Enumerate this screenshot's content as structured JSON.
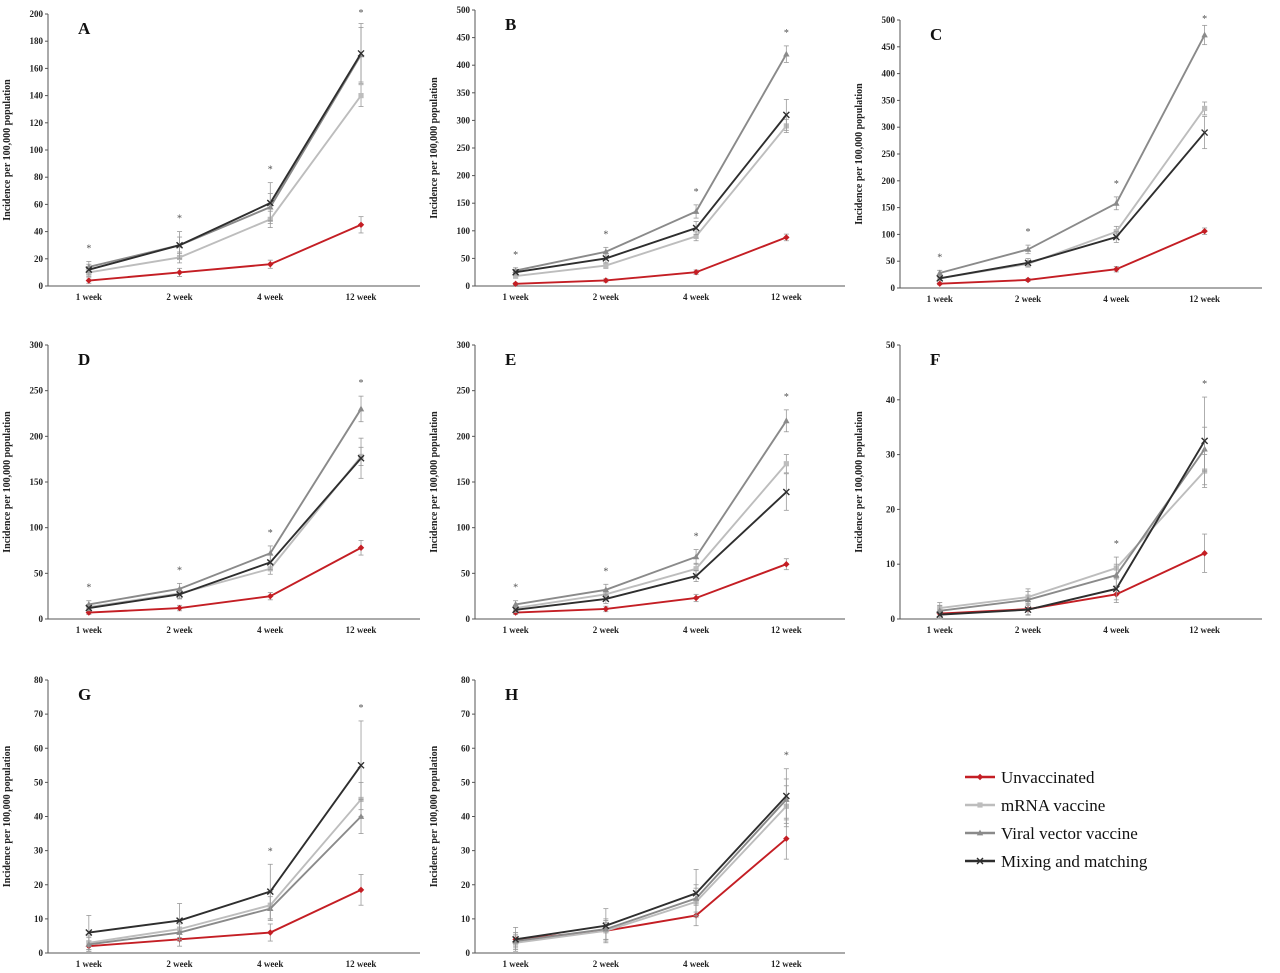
{
  "legend": [
    {
      "name": "Unvaccinated",
      "color": "#c41e24",
      "marker": "diamond"
    },
    {
      "name": "mRNA vaccine",
      "color": "#bdbdbd",
      "marker": "square"
    },
    {
      "name": "Viral vector vaccine",
      "color": "#8a8a8a",
      "marker": "triangle"
    },
    {
      "name": "Mixing and matching",
      "color": "#2e2e2e",
      "marker": "x"
    }
  ],
  "chart_data": [
    {
      "type": "line",
      "panel": "A",
      "ylabel": "Incidence per 100,000 population",
      "ylim": [
        0,
        200
      ],
      "yticks": [
        0,
        20,
        40,
        60,
        80,
        100,
        120,
        140,
        160,
        180,
        200
      ],
      "categories": [
        "1 week",
        "2 week",
        "4 week",
        "12 week"
      ],
      "series": [
        {
          "name": "Unvaccinated",
          "values": [
            4,
            10,
            16,
            45
          ],
          "err": [
            2,
            3,
            3,
            6
          ]
        },
        {
          "name": "mRNA vaccine",
          "values": [
            10,
            21,
            49,
            140
          ],
          "err": [
            3,
            4,
            6,
            8
          ]
        },
        {
          "name": "Viral vector vaccine",
          "values": [
            14,
            30,
            58,
            170
          ],
          "err": [
            4,
            6,
            10,
            20
          ]
        },
        {
          "name": "Mixing and matching",
          "values": [
            12,
            30,
            61,
            171
          ],
          "err": [
            4,
            10,
            15,
            22
          ]
        }
      ],
      "significance": [
        "*",
        "*",
        "*",
        "*"
      ]
    },
    {
      "type": "line",
      "panel": "B",
      "ylabel": "Incidence per 100,000 population",
      "ylim": [
        0,
        500
      ],
      "yticks": [
        0,
        50,
        100,
        150,
        200,
        250,
        300,
        350,
        400,
        450,
        500
      ],
      "categories": [
        "1 week",
        "2 week",
        "4 week",
        "12 week"
      ],
      "series": [
        {
          "name": "Unvaccinated",
          "values": [
            4,
            10,
            25,
            88
          ],
          "err": [
            2,
            3,
            4,
            6
          ]
        },
        {
          "name": "mRNA vaccine",
          "values": [
            18,
            37,
            90,
            290
          ],
          "err": [
            4,
            5,
            8,
            12
          ]
        },
        {
          "name": "Viral vector vaccine",
          "values": [
            28,
            62,
            135,
            420
          ],
          "err": [
            5,
            8,
            12,
            15
          ]
        },
        {
          "name": "Mixing and matching",
          "values": [
            25,
            50,
            105,
            310
          ],
          "err": [
            5,
            8,
            12,
            28
          ]
        }
      ],
      "significance": [
        "*",
        "*",
        "*",
        "*"
      ]
    },
    {
      "type": "line",
      "panel": "C",
      "ylabel": "Incidence per 100,000 population",
      "ylim": [
        0,
        500
      ],
      "yticks": [
        0,
        50,
        100,
        150,
        200,
        250,
        300,
        350,
        400,
        450,
        500
      ],
      "categories": [
        "1 week",
        "2 week",
        "4 week",
        "12 week"
      ],
      "series": [
        {
          "name": "Unvaccinated",
          "values": [
            8,
            15,
            35,
            106
          ],
          "err": [
            2,
            3,
            5,
            6
          ]
        },
        {
          "name": "mRNA vaccine",
          "values": [
            18,
            45,
            105,
            335
          ],
          "err": [
            4,
            6,
            10,
            12
          ]
        },
        {
          "name": "Viral vector vaccine",
          "values": [
            28,
            72,
            158,
            472
          ],
          "err": [
            5,
            8,
            12,
            18
          ]
        },
        {
          "name": "Mixing and matching",
          "values": [
            18,
            47,
            95,
            290
          ],
          "err": [
            4,
            8,
            10,
            30
          ]
        }
      ],
      "significance": [
        "*",
        "*",
        "*",
        "*"
      ]
    },
    {
      "type": "line",
      "panel": "D",
      "ylabel": "Incidence per 100,000 population",
      "ylim": [
        0,
        300
      ],
      "yticks": [
        0,
        50,
        100,
        150,
        200,
        250,
        300
      ],
      "categories": [
        "1 week",
        "2 week",
        "4 week",
        "12 week"
      ],
      "series": [
        {
          "name": "Unvaccinated",
          "values": [
            7,
            12,
            25,
            78
          ],
          "err": [
            2,
            3,
            4,
            8
          ]
        },
        {
          "name": "mRNA vaccine",
          "values": [
            13,
            28,
            55,
            178
          ],
          "err": [
            3,
            5,
            6,
            10
          ]
        },
        {
          "name": "Viral vector vaccine",
          "values": [
            16,
            33,
            72,
            230
          ],
          "err": [
            4,
            6,
            8,
            14
          ]
        },
        {
          "name": "Mixing and matching",
          "values": [
            12,
            27,
            62,
            176
          ],
          "err": [
            3,
            5,
            8,
            22
          ]
        }
      ],
      "significance": [
        "*",
        "*",
        "*",
        "*"
      ]
    },
    {
      "type": "line",
      "panel": "E",
      "ylabel": "Incidence per 100,000 population",
      "ylim": [
        0,
        300
      ],
      "yticks": [
        0,
        50,
        100,
        150,
        200,
        250,
        300
      ],
      "categories": [
        "1 week",
        "2 week",
        "4 week",
        "12 week"
      ],
      "series": [
        {
          "name": "Unvaccinated",
          "values": [
            7,
            11,
            23,
            60
          ],
          "err": [
            2,
            3,
            4,
            6
          ]
        },
        {
          "name": "mRNA vaccine",
          "values": [
            12,
            27,
            55,
            170
          ],
          "err": [
            3,
            5,
            6,
            10
          ]
        },
        {
          "name": "Viral vector vaccine",
          "values": [
            16,
            32,
            68,
            217
          ],
          "err": [
            4,
            6,
            8,
            12
          ]
        },
        {
          "name": "Mixing and matching",
          "values": [
            10,
            22,
            47,
            139
          ],
          "err": [
            3,
            5,
            6,
            20
          ]
        }
      ],
      "significance": [
        "*",
        "*",
        "*",
        "*"
      ]
    },
    {
      "type": "line",
      "panel": "F",
      "ylabel": "Incidence per 100,000 population",
      "ylim": [
        0,
        50
      ],
      "yticks": [
        0,
        10,
        20,
        30,
        40,
        50
      ],
      "categories": [
        "1 week",
        "2 week",
        "4 week",
        "12 week"
      ],
      "series": [
        {
          "name": "Unvaccinated",
          "values": [
            1,
            1.8,
            4.5,
            12
          ],
          "err": [
            0.8,
            1,
            1.5,
            3.5
          ]
        },
        {
          "name": "mRNA vaccine",
          "values": [
            2,
            4,
            9.3,
            27
          ],
          "err": [
            1,
            1.5,
            2,
            3
          ]
        },
        {
          "name": "Viral vector vaccine",
          "values": [
            1.5,
            3.5,
            8,
            31
          ],
          "err": [
            1,
            1.5,
            2,
            4
          ]
        },
        {
          "name": "Mixing and matching",
          "values": [
            0.8,
            1.7,
            5.5,
            32.5
          ],
          "err": [
            0.8,
            1,
            2,
            8
          ]
        }
      ],
      "significance": [
        "",
        "",
        "*",
        "*"
      ]
    },
    {
      "type": "line",
      "panel": "G",
      "ylabel": "Incidence per 100,000 population",
      "ylim": [
        0,
        80
      ],
      "yticks": [
        0,
        10,
        20,
        30,
        40,
        50,
        60,
        70,
        80
      ],
      "categories": [
        "1 week",
        "2 week",
        "4 week",
        "12 week"
      ],
      "series": [
        {
          "name": "Unvaccinated",
          "values": [
            2,
            4,
            6,
            18.5
          ],
          "err": [
            1.5,
            2,
            2.5,
            4.5
          ]
        },
        {
          "name": "mRNA vaccine",
          "values": [
            3,
            7,
            14,
            45
          ],
          "err": [
            2,
            3,
            4,
            5
          ]
        },
        {
          "name": "Viral vector vaccine",
          "values": [
            2.5,
            6,
            13,
            40
          ],
          "err": [
            2,
            2.5,
            3.5,
            5
          ]
        },
        {
          "name": "Mixing and matching",
          "values": [
            6,
            9.5,
            18,
            55
          ],
          "err": [
            5,
            5,
            8,
            13
          ]
        }
      ],
      "significance": [
        "",
        "",
        "*",
        "*"
      ]
    },
    {
      "type": "line",
      "panel": "H",
      "ylabel": "Incidence per 100,000 population",
      "ylim": [
        0,
        80
      ],
      "yticks": [
        0,
        10,
        20,
        30,
        40,
        50,
        60,
        70,
        80
      ],
      "categories": [
        "1 week",
        "2 week",
        "4 week",
        "12 week"
      ],
      "series": [
        {
          "name": "Unvaccinated",
          "values": [
            4,
            6.5,
            11,
            33.5
          ],
          "err": [
            2,
            2.5,
            3,
            6
          ]
        },
        {
          "name": "mRNA vaccine",
          "values": [
            3,
            6.5,
            15,
            43
          ],
          "err": [
            2,
            3,
            4,
            6
          ]
        },
        {
          "name": "Viral vector vaccine",
          "values": [
            3.5,
            7,
            16,
            45
          ],
          "err": [
            2,
            3,
            4,
            6
          ]
        },
        {
          "name": "Mixing and matching",
          "values": [
            4,
            8,
            17.5,
            46
          ],
          "err": [
            3.5,
            5,
            7,
            8
          ]
        }
      ],
      "significance": [
        "",
        "",
        "",
        "*"
      ]
    }
  ]
}
